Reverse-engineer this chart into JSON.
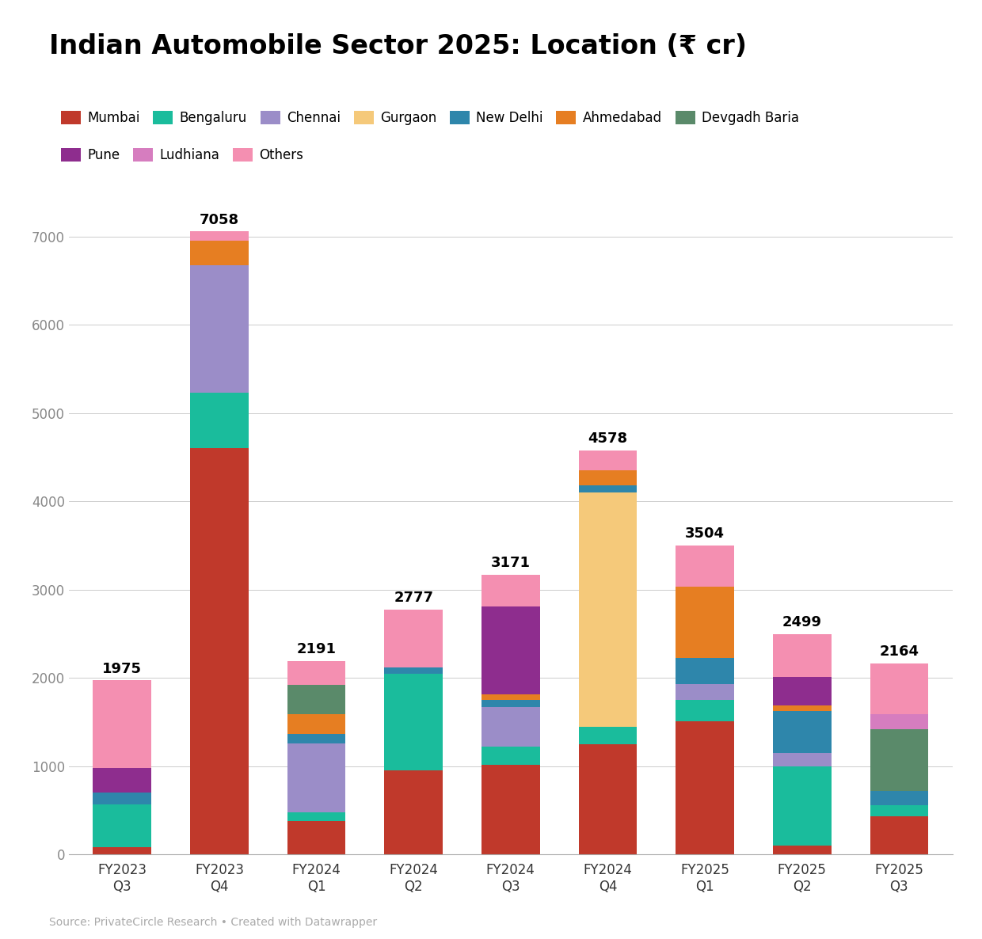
{
  "title": "Indian Automobile Sector 2025: Location (₹ cr)",
  "categories": [
    "FY2023\nQ3",
    "FY2023\nQ4",
    "FY2024\nQ1",
    "FY2024\nQ2",
    "FY2024\nQ3",
    "FY2024\nQ4",
    "FY2025\nQ1",
    "FY2025\nQ2",
    "FY2025\nQ3"
  ],
  "totals": [
    1975,
    7058,
    2191,
    2777,
    3171,
    4578,
    3504,
    2499,
    2164
  ],
  "segments": {
    "Mumbai": [
      80,
      4600,
      380,
      950,
      1020,
      1250,
      1510,
      100,
      430
    ],
    "Bengaluru": [
      490,
      630,
      100,
      1100,
      200,
      200,
      240,
      900,
      130
    ],
    "Chennai": [
      0,
      1450,
      780,
      0,
      450,
      0,
      180,
      150,
      0
    ],
    "Gurgaon": [
      0,
      0,
      0,
      0,
      0,
      2650,
      0,
      0,
      0
    ],
    "New Delhi": [
      130,
      0,
      110,
      70,
      80,
      80,
      300,
      480,
      160
    ],
    "Ahmedabad": [
      0,
      270,
      220,
      0,
      60,
      170,
      800,
      60,
      0
    ],
    "Devgadh Baria": [
      0,
      0,
      330,
      0,
      0,
      0,
      0,
      0,
      700
    ],
    "Pune": [
      280,
      0,
      0,
      0,
      1000,
      0,
      0,
      320,
      0
    ],
    "Ludhiana": [
      0,
      0,
      0,
      0,
      0,
      0,
      0,
      0,
      170
    ],
    "Others": [
      995,
      108,
      271,
      657,
      361,
      228,
      474,
      489,
      574
    ]
  },
  "colors": {
    "Mumbai": "#c0392b",
    "Bengaluru": "#1abc9c",
    "Chennai": "#9b8dc8",
    "Gurgaon": "#f5c97a",
    "New Delhi": "#2e86ab",
    "Ahmedabad": "#e67e22",
    "Devgadh Baria": "#5a8a6a",
    "Pune": "#8e2d8e",
    "Ludhiana": "#d67dbf",
    "Others": "#f48fb1"
  },
  "source": "Source: PrivateCircle Research • Created with Datawrapper",
  "ylim": [
    0,
    7500
  ],
  "yticks": [
    0,
    1000,
    2000,
    3000,
    4000,
    5000,
    6000,
    7000
  ],
  "bar_width": 0.6
}
